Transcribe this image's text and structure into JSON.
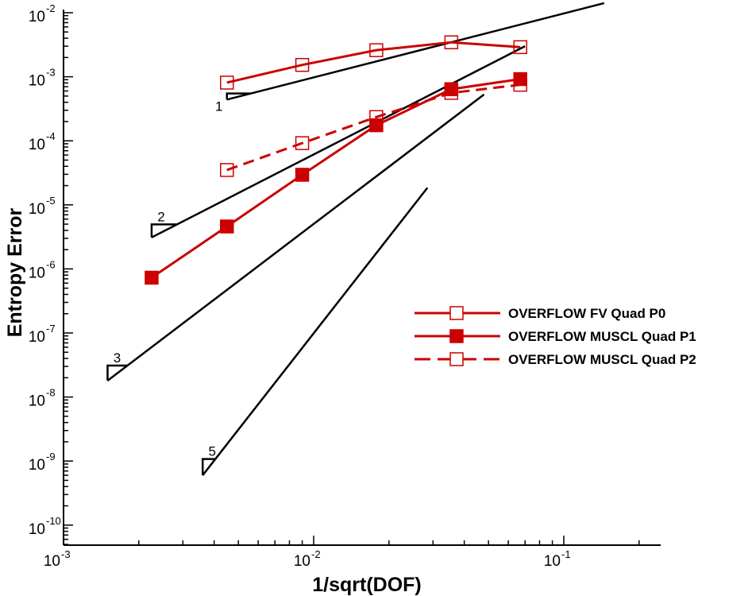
{
  "chart_data": {
    "type": "line",
    "xlabel": "1/sqrt(DOF)",
    "ylabel": "Entropy Error",
    "xscale": "log",
    "yscale": "log",
    "xlim": [
      0.001,
      0.2
    ],
    "ylim": [
      5e-11,
      0.01
    ],
    "grid": false,
    "legend_position": "right",
    "x_ticks": [
      {
        "base": "10",
        "exp": "-3",
        "value": 0.001
      },
      {
        "base": "10",
        "exp": "-2",
        "value": 0.01
      },
      {
        "base": "10",
        "exp": "-1",
        "value": 0.1
      }
    ],
    "y_ticks": [
      {
        "base": "10",
        "exp": "-2",
        "value": 0.01
      },
      {
        "base": "10",
        "exp": "-3",
        "value": 0.001
      },
      {
        "base": "10",
        "exp": "-4",
        "value": 0.0001
      },
      {
        "base": "10",
        "exp": "-5",
        "value": 1e-05
      },
      {
        "base": "10",
        "exp": "-6",
        "value": 1e-06
      },
      {
        "base": "10",
        "exp": "-7",
        "value": 1e-07
      },
      {
        "base": "10",
        "exp": "-8",
        "value": 1e-08
      },
      {
        "base": "10",
        "exp": "-9",
        "value": 1e-09
      },
      {
        "base": "10",
        "exp": "-10",
        "value": 1e-10
      }
    ],
    "series": [
      {
        "name": "OVERFLOW FV Quad P0",
        "color": "#cc0000",
        "marker": "open-square",
        "dash": "solid",
        "x": [
          0.0045,
          0.009,
          0.0178,
          0.0355,
          0.067
        ],
        "y": [
          0.00081,
          0.00153,
          0.0026,
          0.00345,
          0.0029
        ]
      },
      {
        "name": "OVERFLOW MUSCL Quad P1",
        "color": "#cc0000",
        "marker": "filled-square",
        "dash": "solid",
        "x": [
          0.00225,
          0.0045,
          0.009,
          0.0178,
          0.0355,
          0.067
        ],
        "y": [
          7.3e-07,
          4.6e-06,
          2.95e-05,
          0.000175,
          0.00064,
          0.00092
        ]
      },
      {
        "name": "OVERFLOW MUSCL Quad P2",
        "color": "#cc0000",
        "marker": "open-square",
        "dash": "dashed",
        "x": [
          0.0045,
          0.009,
          0.0178,
          0.0355,
          0.067
        ],
        "y": [
          3.5e-05,
          9.2e-05,
          0.000235,
          0.00056,
          0.00075
        ]
      }
    ],
    "reference_slopes": [
      {
        "label": "1",
        "x1": 0.0045,
        "y1": 0.00044,
        "x2": 0.145,
        "y2": 0.0141,
        "tri_dx": 0.0019,
        "tri_side": "top"
      },
      {
        "label": "2",
        "x1": 0.00225,
        "y1": 3.1e-06,
        "x2": 0.07,
        "y2": 0.003,
        "tri_dx": 0.0009,
        "tri_side": "top"
      },
      {
        "label": "3",
        "x1": 0.0015,
        "y1": 1.8e-08,
        "x2": 0.048,
        "y2": 0.00053,
        "tri_dx": 0.00025,
        "tri_side": "top"
      },
      {
        "label": "5",
        "x1": 0.0036,
        "y1": 6e-10,
        "x2": 0.0285,
        "y2": 1.85e-05,
        "tri_dx": 0.0004,
        "tri_side": "top"
      }
    ]
  }
}
